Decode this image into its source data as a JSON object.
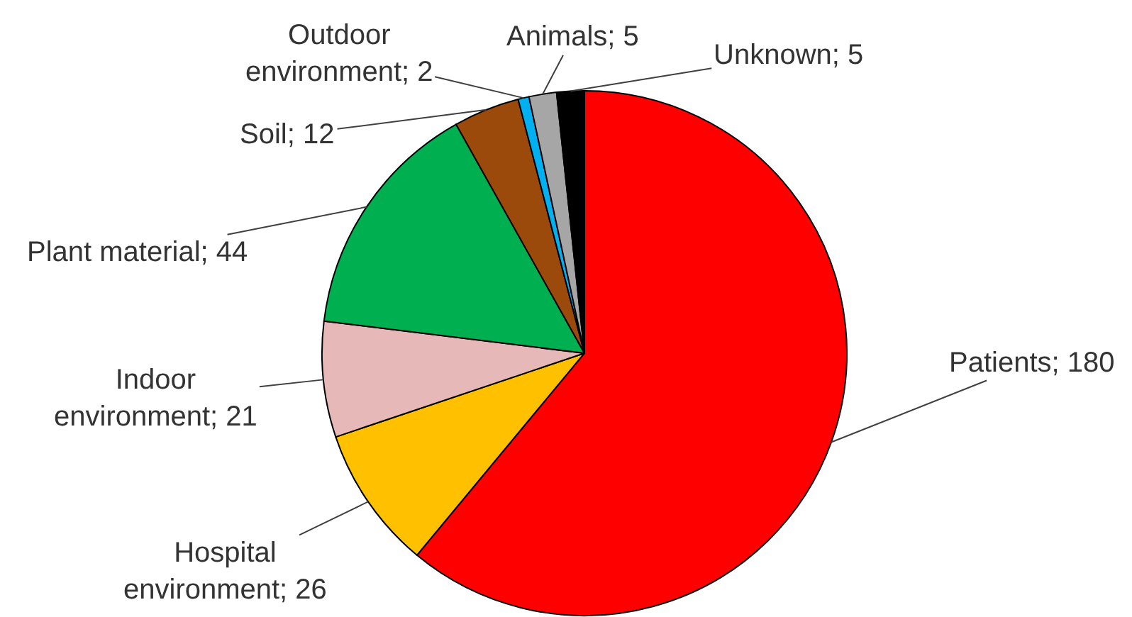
{
  "chart_data": {
    "type": "pie",
    "categories": [
      "Patients; 180",
      "Hospital environment; 26",
      "Indoor environment; 21",
      "Plant material; 44",
      "Soil; 12",
      "Outdoor environment; 2",
      "Animals; 5",
      "Unknown; 5"
    ],
    "values": [
      180,
      26,
      21,
      44,
      12,
      2,
      5,
      5
    ],
    "colors": [
      "#ff0000",
      "#ffc000",
      "#e6b9b8",
      "#00b050",
      "#9c4a0c",
      "#00b0f0",
      "#a6a6a6",
      "#000000"
    ]
  }
}
